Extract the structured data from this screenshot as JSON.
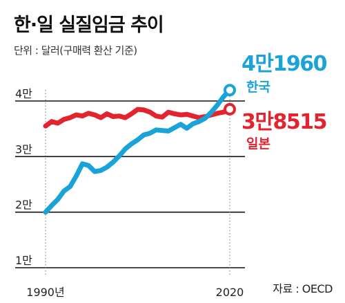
{
  "header": {
    "title": "한·일 실질임금 추이",
    "unit": "단위 : 달러(구매력 환산 기준)"
  },
  "source": "자료 : OECD",
  "colors": {
    "korea": "#1aa3d9",
    "japan": "#e3232d"
  },
  "chart_data": {
    "type": "line",
    "title": "한·일 실질임금 추이",
    "ylabel": "단위 : 달러(구매력 환산 기준)",
    "xlim": [
      1990,
      2020
    ],
    "ylim": [
      10000,
      43000
    ],
    "yticks": [
      {
        "value": 10000,
        "label": "1만"
      },
      {
        "value": 20000,
        "label": "2만"
      },
      {
        "value": 30000,
        "label": "3만"
      },
      {
        "value": 40000,
        "label": "4만"
      }
    ],
    "xticks": [
      {
        "value": 1990,
        "label": "1990년"
      },
      {
        "value": 2020,
        "label": "2020"
      }
    ],
    "grid": true,
    "series": [
      {
        "name": "한국",
        "color": "#1aa3d9",
        "end_label": "4만1960",
        "x": [
          1990,
          1991,
          1992,
          1993,
          1994,
          1995,
          1996,
          1997,
          1998,
          1999,
          2000,
          2001,
          2002,
          2003,
          2004,
          2005,
          2006,
          2007,
          2008,
          2009,
          2010,
          2011,
          2012,
          2013,
          2014,
          2015,
          2016,
          2017,
          2018,
          2019,
          2020
        ],
        "y": [
          20000,
          21200,
          22300,
          23800,
          24600,
          26500,
          28700,
          28400,
          27300,
          27500,
          28100,
          29000,
          30100,
          31400,
          32300,
          33000,
          33900,
          34200,
          34800,
          34700,
          34600,
          35200,
          35800,
          35100,
          35900,
          36300,
          36900,
          38000,
          39300,
          40800,
          41960
        ]
      },
      {
        "name": "일본",
        "color": "#e3232d",
        "end_label": "3만8515",
        "x": [
          1990,
          1991,
          1992,
          1993,
          1994,
          1995,
          1996,
          1997,
          1998,
          1999,
          2000,
          2001,
          2002,
          2003,
          2004,
          2005,
          2006,
          2007,
          2008,
          2009,
          2010,
          2011,
          2012,
          2013,
          2014,
          2015,
          2016,
          2017,
          2018,
          2019,
          2020
        ],
        "y": [
          35500,
          36300,
          36000,
          36700,
          37000,
          37500,
          37300,
          37800,
          37500,
          37000,
          37700,
          37200,
          37300,
          37000,
          37700,
          38500,
          38400,
          38000,
          37300,
          37100,
          38000,
          37700,
          37500,
          37600,
          37300,
          37000,
          37200,
          37500,
          37800,
          38000,
          38515
        ]
      }
    ]
  }
}
